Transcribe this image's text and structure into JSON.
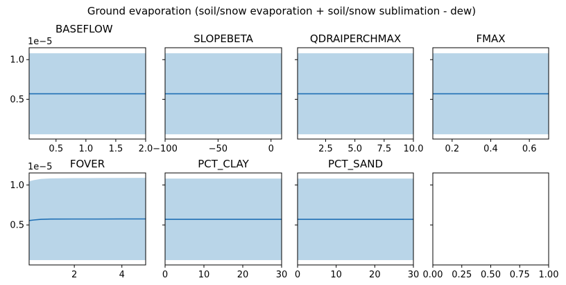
{
  "figure": {
    "suptitle": "Ground evaporation (soil/snow evaporation + soil/snow sublimation - dew)"
  },
  "colors": {
    "line": "#1f6fb4",
    "band": "#b9d5e8",
    "axis": "#000000"
  },
  "chart_data": [
    {
      "type": "line",
      "title": "BASEFLOW",
      "x": [
        0.05,
        2.0
      ],
      "y": [
        5.7e-06,
        5.7e-06
      ],
      "band_lower": [
        6e-07,
        6e-07
      ],
      "band_upper": [
        1.08e-05,
        1.08e-05
      ],
      "xlim": [
        0.05,
        2.0
      ],
      "ylim": [
        0.0,
        1.15e-05
      ],
      "xticks": [
        0.5,
        1.0,
        1.5,
        2.0
      ],
      "xtick_labels": [
        "0.5",
        "1.0",
        "1.5",
        "2.0"
      ],
      "yticks": [
        5e-06,
        1e-05
      ],
      "ytick_labels": [
        "0.5",
        "1.0"
      ],
      "offset_text": "1e−5",
      "title_align": "left"
    },
    {
      "type": "line",
      "title": "SLOPEBETA",
      "x": [
        -100,
        10
      ],
      "y": [
        5.7e-06,
        5.7e-06
      ],
      "band_lower": [
        6e-07,
        6e-07
      ],
      "band_upper": [
        1.08e-05,
        1.08e-05
      ],
      "xlim": [
        -100,
        10
      ],
      "ylim": [
        0.0,
        1.15e-05
      ],
      "xticks": [
        -100,
        -50,
        0
      ],
      "xtick_labels": [
        "−100",
        "−50",
        "0"
      ],
      "yticks": [
        5e-06,
        1e-05
      ],
      "ytick_labels": [
        "",
        ""
      ]
    },
    {
      "type": "line",
      "title": "QDRAIPERCHMAX",
      "x": [
        0.1,
        10.0
      ],
      "y": [
        5.7e-06,
        5.7e-06
      ],
      "band_lower": [
        6e-07,
        6e-07
      ],
      "band_upper": [
        1.08e-05,
        1.08e-05
      ],
      "xlim": [
        0.1,
        10.0
      ],
      "ylim": [
        0.0,
        1.15e-05
      ],
      "xticks": [
        2.5,
        5.0,
        7.5,
        10.0
      ],
      "xtick_labels": [
        "2.5",
        "5.0",
        "7.5",
        "10.0"
      ],
      "yticks": [
        5e-06,
        1e-05
      ],
      "ytick_labels": [
        "",
        ""
      ]
    },
    {
      "type": "line",
      "title": "FMAX",
      "x": [
        0.1,
        0.7
      ],
      "y": [
        5.7e-06,
        5.7e-06
      ],
      "band_lower": [
        6e-07,
        6e-07
      ],
      "band_upper": [
        1.08e-05,
        1.08e-05
      ],
      "xlim": [
        0.1,
        0.7
      ],
      "ylim": [
        0.0,
        1.15e-05
      ],
      "xticks": [
        0.2,
        0.4,
        0.6
      ],
      "xtick_labels": [
        "0.2",
        "0.4",
        "0.6"
      ],
      "yticks": [
        5e-06,
        1e-05
      ],
      "ytick_labels": [
        "",
        ""
      ]
    },
    {
      "type": "line",
      "title": "FOVER",
      "x": [
        0.1,
        0.3,
        0.6,
        1.0,
        2.0,
        3.0,
        4.0,
        5.0
      ],
      "y": [
        5.55e-06,
        5.62e-06,
        5.7e-06,
        5.73e-06,
        5.74e-06,
        5.74e-06,
        5.75e-06,
        5.75e-06
      ],
      "band_lower": [
        6e-07,
        6e-07,
        6e-07,
        6e-07,
        6e-07,
        6e-07,
        6e-07,
        6e-07
      ],
      "band_upper": [
        1.045e-05,
        1.06e-05,
        1.075e-05,
        1.082e-05,
        1.085e-05,
        1.086e-05,
        1.087e-05,
        1.088e-05
      ],
      "xlim": [
        0.1,
        5.0
      ],
      "ylim": [
        0.0,
        1.15e-05
      ],
      "xticks": [
        2,
        4
      ],
      "xtick_labels": [
        "2",
        "4"
      ],
      "yticks": [
        5e-06,
        1e-05
      ],
      "ytick_labels": [
        "0.5",
        "1.0"
      ],
      "offset_text": "1e−5"
    },
    {
      "type": "line",
      "title": "PCT_CLAY",
      "x": [
        0,
        30
      ],
      "y": [
        5.7e-06,
        5.7e-06
      ],
      "band_lower": [
        6e-07,
        6e-07
      ],
      "band_upper": [
        1.08e-05,
        1.08e-05
      ],
      "xlim": [
        0,
        30
      ],
      "ylim": [
        0.0,
        1.15e-05
      ],
      "xticks": [
        0,
        10,
        20,
        30
      ],
      "xtick_labels": [
        "0",
        "10",
        "20",
        "30"
      ],
      "yticks": [
        5e-06,
        1e-05
      ],
      "ytick_labels": [
        "",
        ""
      ]
    },
    {
      "type": "line",
      "title": "PCT_SAND",
      "x": [
        0,
        30
      ],
      "y": [
        5.7e-06,
        5.7e-06
      ],
      "band_lower": [
        6e-07,
        6e-07
      ],
      "band_upper": [
        1.08e-05,
        1.08e-05
      ],
      "xlim": [
        0,
        30
      ],
      "ylim": [
        0.0,
        1.15e-05
      ],
      "xticks": [
        0,
        10,
        20,
        30
      ],
      "xtick_labels": [
        "0",
        "10",
        "20",
        "30"
      ],
      "yticks": [
        5e-06,
        1e-05
      ],
      "ytick_labels": [
        "",
        ""
      ]
    },
    {
      "type": "line",
      "title": "",
      "x": [],
      "y": [],
      "band_lower": [],
      "band_upper": [],
      "xlim": [
        0.0,
        1.0
      ],
      "ylim": [
        0.0,
        1.15e-05
      ],
      "xticks": [
        0.0,
        0.25,
        0.5,
        0.75,
        1.0
      ],
      "xtick_labels": [
        "0.00",
        "0.25",
        "0.50",
        "0.75",
        "1.00"
      ],
      "yticks": [
        5e-06,
        1e-05
      ],
      "ytick_labels": [
        "",
        ""
      ]
    }
  ]
}
